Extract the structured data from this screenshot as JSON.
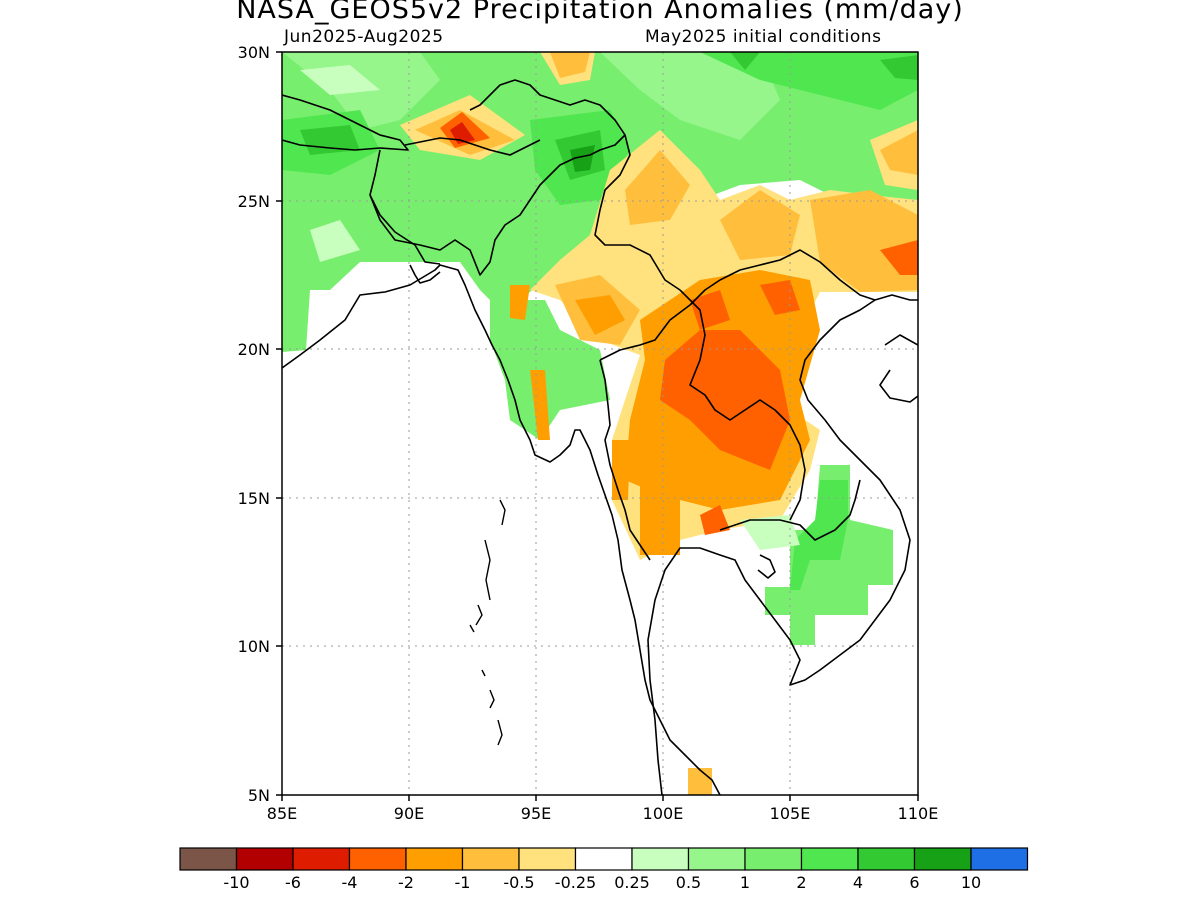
{
  "title": "NASA_GEOS5v2 Precipitation Anomalies (mm/day)",
  "subtitle_left": "Jun2025-Aug2025",
  "subtitle_right": "May2025 initial conditions",
  "map": {
    "lon_range": [
      85,
      110
    ],
    "lat_range": [
      5,
      30
    ],
    "x_ticks": [
      "85E",
      "90E",
      "95E",
      "100E",
      "105E",
      "110E"
    ],
    "y_ticks": [
      "30N",
      "25N",
      "20N",
      "15N",
      "10N",
      "5N"
    ],
    "gridlines": true
  },
  "colorbar": {
    "colors": [
      "#7a5548",
      "#b20000",
      "#dd1c00",
      "#ff6000",
      "#ff9e00",
      "#ffbe3c",
      "#ffe27e",
      "#ffffff",
      "#c8ffbe",
      "#96f68c",
      "#78ee6e",
      "#50e650",
      "#33c933",
      "#16a116",
      "#1e6ee6"
    ],
    "labels": [
      "-10",
      "-6",
      "-4",
      "-2",
      "-1",
      "-0.5",
      "-0.25",
      "0.25",
      "0.5",
      "1",
      "2",
      "4",
      "6",
      "10"
    ]
  }
}
